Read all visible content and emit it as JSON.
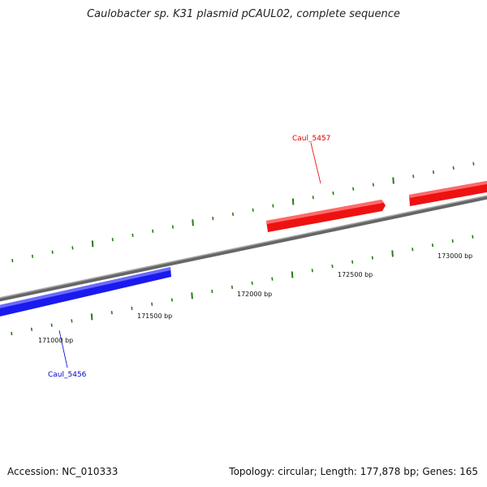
{
  "title": "Caulobacter sp. K31 plasmid pCAUL02, complete sequence",
  "accession": "Accession: NC_010333",
  "topology": "Topology: circular; Length: 177,878 bp; Genes: 165",
  "colors": {
    "backbone": "#808080",
    "forward_gene": "#ee1111",
    "reverse_gene": "#1a1aee",
    "tick": "#2a7a1a",
    "forward_label": "#dd0000",
    "reverse_label": "#0000cc"
  },
  "ticks": [
    {
      "bp": 171000,
      "label": "171000 bp"
    },
    {
      "bp": 171500,
      "label": "171500 bp"
    },
    {
      "bp": 172000,
      "label": "172000 bp"
    },
    {
      "bp": 172500,
      "label": "172500 bp"
    },
    {
      "bp": 173000,
      "label": "173000 bp"
    }
  ],
  "genes": [
    {
      "name": "Caul_5456",
      "strand": "reverse"
    },
    {
      "name": "Caul_5457",
      "strand": "forward"
    }
  ]
}
